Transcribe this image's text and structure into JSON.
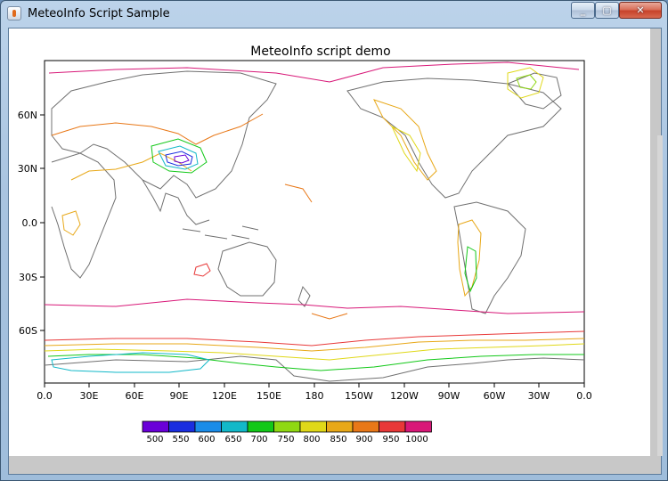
{
  "window": {
    "title": "MeteoInfo Script Sample",
    "min_glyph": "_",
    "max_glyph": "▢",
    "close_glyph": "✕"
  },
  "map": {
    "title": "MeteoInfo script demo",
    "y_ticks": [
      "60N",
      "30N",
      "0.0",
      "30S",
      "60S"
    ],
    "x_ticks": [
      "0.0",
      "30E",
      "60E",
      "90E",
      "120E",
      "150E",
      "180",
      "150W",
      "120W",
      "90W",
      "60W",
      "30W",
      "0.0"
    ]
  },
  "legend": {
    "levels": [
      {
        "value": "500",
        "color": "#6a00d8"
      },
      {
        "value": "550",
        "color": "#1a2ee0"
      },
      {
        "value": "600",
        "color": "#1a8ce8"
      },
      {
        "value": "650",
        "color": "#12b8c8"
      },
      {
        "value": "700",
        "color": "#12c818"
      },
      {
        "value": "750",
        "color": "#8fd812"
      },
      {
        "value": "800",
        "color": "#e0d818"
      },
      {
        "value": "850",
        "color": "#e8a818"
      },
      {
        "value": "900",
        "color": "#e87818"
      },
      {
        "value": "950",
        "color": "#e83838"
      },
      {
        "value": "1000",
        "color": "#d81878"
      }
    ]
  }
}
